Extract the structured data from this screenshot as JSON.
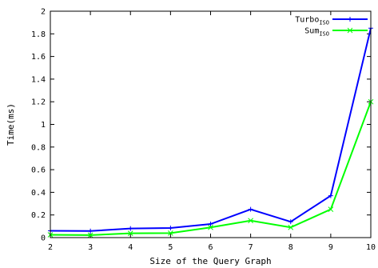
{
  "chart_data": {
    "type": "line",
    "xlabel": "Size of the Query Graph",
    "ylabel": "Time(ms)",
    "xlim": [
      2,
      10
    ],
    "ylim": [
      0,
      2
    ],
    "xticks": [
      "2",
      "3",
      "4",
      "5",
      "6",
      "7",
      "8",
      "9",
      "10"
    ],
    "yticks": [
      "0",
      "0.2",
      "0.4",
      "0.6",
      "0.8",
      "1",
      "1.2",
      "1.4",
      "1.6",
      "1.8",
      "2"
    ],
    "grid": false,
    "legend_position": "top-right",
    "x": [
      2,
      3,
      4,
      5,
      6,
      7,
      8,
      9,
      10
    ],
    "series": [
      {
        "name": "Turbo",
        "subscript": "ISO",
        "color": "#0000ff",
        "marker": "plus",
        "values": [
          0.06,
          0.058,
          0.08,
          0.085,
          0.12,
          0.25,
          0.14,
          0.37,
          1.85
        ]
      },
      {
        "name": "Sum",
        "subscript": "ISO",
        "color": "#00ff00",
        "marker": "cross",
        "values": [
          0.025,
          0.022,
          0.038,
          0.04,
          0.09,
          0.15,
          0.09,
          0.25,
          1.2
        ]
      }
    ]
  }
}
